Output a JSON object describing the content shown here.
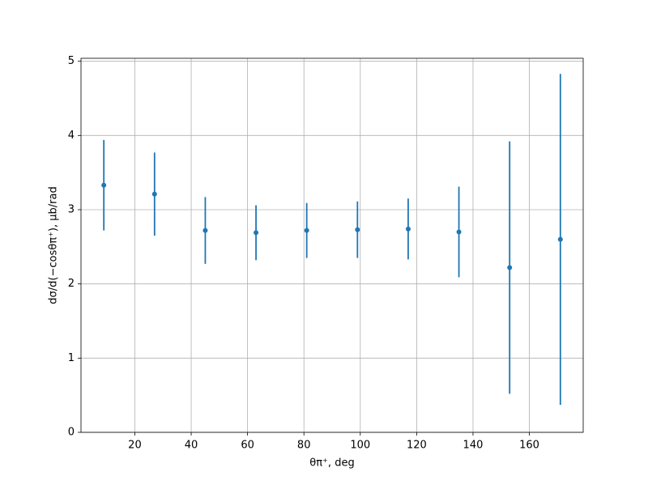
{
  "chart_data": {
    "type": "errorbar",
    "x_label": "θπ⁺, deg",
    "y_label": "dσ/d(−cosθπ⁺), μb/rad",
    "color": "#1f77b4",
    "grid": true,
    "x": [
      9,
      27,
      45,
      63,
      81,
      99,
      117,
      135,
      153,
      171
    ],
    "values": [
      3.33,
      3.21,
      2.72,
      2.69,
      2.72,
      2.73,
      2.74,
      2.7,
      2.22,
      2.6
    ],
    "errors": [
      0.61,
      0.56,
      0.45,
      0.37,
      0.37,
      0.38,
      0.41,
      0.61,
      1.7,
      2.23
    ],
    "xlim": [
      0.9,
      179.1
    ],
    "ylim": [
      0,
      5.04
    ],
    "xticks": [
      20,
      40,
      60,
      80,
      100,
      120,
      140,
      160
    ],
    "yticks": [
      0,
      1,
      2,
      3,
      4,
      5
    ]
  }
}
